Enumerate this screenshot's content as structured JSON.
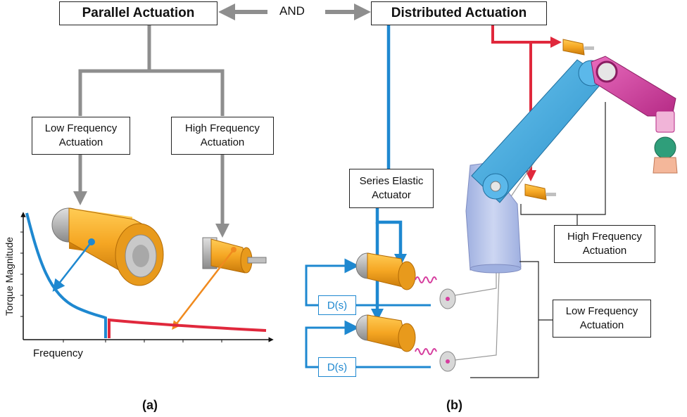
{
  "top": {
    "parallel_title": "Parallel Actuation",
    "and_label": "AND",
    "distributed_title": "Distributed Actuation"
  },
  "panel_a": {
    "low_freq_box": "Low Frequency\nActuation",
    "high_freq_box": "High Frequency\nActuation",
    "y_axis_label": "Torque Magnitude",
    "x_axis_label": "Frequency",
    "panel_label": "(a)"
  },
  "panel_b": {
    "sea_box": "Series Elastic\nActuator",
    "controller_upper": "D(s)",
    "controller_lower": "D(s)",
    "high_freq_box": "High Frequency\nActuation",
    "low_freq_box": "Low Frequency\nActuation",
    "panel_label": "(b)"
  },
  "colors": {
    "gray_connector": "#8e8e8e",
    "blue": "#1e88d0",
    "red": "#e0283c",
    "orange": "#f08a1e",
    "actuator_orange": "#f5a623",
    "actuator_gray": "#b8b8b8",
    "arm_blue": "#4fb3e8",
    "arm_magenta": "#d63d9e",
    "base_lavender": "#b8c4e8"
  }
}
